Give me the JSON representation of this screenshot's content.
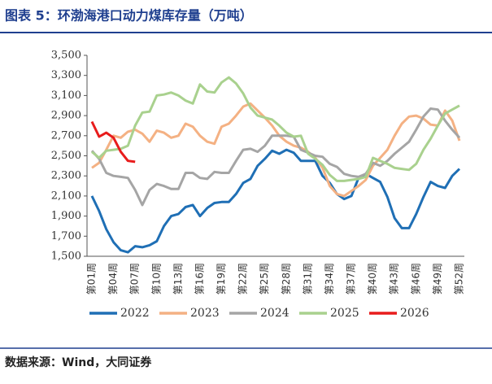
{
  "chart_data": {
    "type": "line",
    "title": "图表 5：环渤海港口动力煤库存量（万吨）",
    "source": "数据来源：Wind，大同证券",
    "categories": [
      "第01周",
      null,
      null,
      "第04周",
      null,
      null,
      "第07周",
      null,
      null,
      "第10周",
      null,
      null,
      "第13周",
      null,
      null,
      "第16周",
      null,
      null,
      "第19周",
      null,
      null,
      "第22周",
      null,
      null,
      "第25周",
      null,
      null,
      "第28周",
      null,
      null,
      "第31周",
      null,
      null,
      "第34周",
      null,
      null,
      "第37周",
      null,
      null,
      "第40周",
      null,
      null,
      "第43周",
      null,
      null,
      "第46周",
      null,
      null,
      "第49周",
      null,
      null,
      "第52周"
    ],
    "ylim": [
      1500,
      3500
    ],
    "yticks": [
      {
        "value": 1500,
        "label": "1,500"
      },
      {
        "value": 1700,
        "label": "1,700"
      },
      {
        "value": 1900,
        "label": "1,900"
      },
      {
        "value": 2100,
        "label": "2,100"
      },
      {
        "value": 2300,
        "label": "2,300"
      },
      {
        "value": 2500,
        "label": "2,500"
      },
      {
        "value": 2700,
        "label": "2,700"
      },
      {
        "value": 2900,
        "label": "2,900"
      },
      {
        "value": 3100,
        "label": "3,100"
      },
      {
        "value": 3300,
        "label": "3,300"
      },
      {
        "value": 3500,
        "label": "3,500"
      }
    ],
    "grid": false,
    "legend": "bottom",
    "series": [
      {
        "name": "2022",
        "color": "#1f6fb5",
        "values": [
          2100,
          1950,
          1770,
          1640,
          1560,
          1540,
          1600,
          1590,
          1610,
          1650,
          1800,
          1900,
          1920,
          1990,
          2010,
          1900,
          1980,
          2030,
          2040,
          2040,
          2120,
          2230,
          2270,
          2400,
          2470,
          2550,
          2520,
          2560,
          2530,
          2450,
          2450,
          2450,
          2300,
          2230,
          2120,
          2070,
          2100,
          2280,
          2320,
          2280,
          2240,
          2090,
          1880,
          1780,
          1780,
          1920,
          2090,
          2240,
          2200,
          2180,
          2300,
          2370
        ]
      },
      {
        "name": "2023",
        "color": "#f4b183",
        "values": [
          2380,
          2430,
          2560,
          2700,
          2680,
          2740,
          2760,
          2720,
          2640,
          2750,
          2730,
          2680,
          2700,
          2820,
          2790,
          2700,
          2640,
          2620,
          2790,
          2820,
          2900,
          2990,
          3020,
          2950,
          2880,
          2800,
          2700,
          2640,
          2600,
          2580,
          2540,
          2480,
          2380,
          2200,
          2120,
          2100,
          2150,
          2200,
          2260,
          2400,
          2480,
          2560,
          2700,
          2820,
          2890,
          2900,
          2870,
          2810,
          2800,
          2950,
          2850,
          2650
        ]
      },
      {
        "name": "2024",
        "color": "#a5a5a5",
        "values": [
          2550,
          2470,
          2330,
          2300,
          2290,
          2280,
          2160,
          2010,
          2160,
          2220,
          2200,
          2170,
          2170,
          2330,
          2330,
          2280,
          2270,
          2340,
          2330,
          2330,
          2450,
          2560,
          2570,
          2540,
          2600,
          2700,
          2700,
          2700,
          2690,
          2560,
          2530,
          2500,
          2490,
          2420,
          2390,
          2320,
          2300,
          2290,
          2320,
          2430,
          2400,
          2450,
          2520,
          2580,
          2640,
          2760,
          2890,
          2970,
          2960,
          2850,
          2760,
          2680
        ]
      },
      {
        "name": "2025",
        "color": "#a9d18e",
        "values": [
          2540,
          2480,
          2550,
          2560,
          2570,
          2600,
          2800,
          2930,
          2940,
          3100,
          3110,
          3130,
          3100,
          3050,
          3020,
          3210,
          3140,
          3130,
          3230,
          3280,
          3220,
          3120,
          2980,
          2900,
          2880,
          2860,
          2800,
          2730,
          2690,
          2700,
          2520,
          2470,
          2410,
          2310,
          2250,
          2250,
          2260,
          2270,
          2290,
          2480,
          2450,
          2420,
          2380,
          2370,
          2360,
          2420,
          2560,
          2670,
          2800,
          2920,
          2960,
          3000
        ]
      },
      {
        "name": "2026",
        "color": "#e81c1c",
        "values": [
          2840,
          2690,
          2730,
          2680,
          2540,
          2450,
          2440,
          null,
          null,
          null,
          null,
          null,
          null,
          null,
          null,
          null,
          null,
          null,
          null,
          null,
          null,
          null,
          null,
          null,
          null,
          null,
          null,
          null,
          null,
          null,
          null,
          null,
          null,
          null,
          null,
          null,
          null,
          null,
          null,
          null,
          null,
          null,
          null,
          null,
          null,
          null,
          null,
          null,
          null,
          null,
          null,
          null
        ]
      }
    ]
  }
}
